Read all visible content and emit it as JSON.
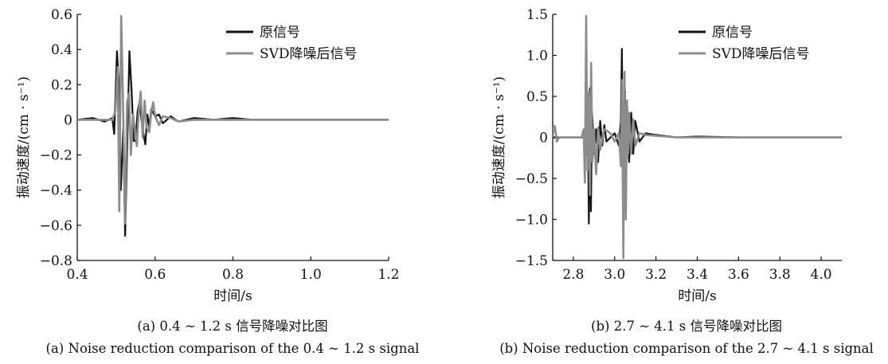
{
  "chart_data": [
    {
      "type": "line",
      "xlabel": "时间/s",
      "ylabel": "振动速度/(cm · s⁻¹)",
      "xlim": [
        0.4,
        1.2
      ],
      "ylim": [
        -0.8,
        0.6
      ],
      "xticks": [
        0.4,
        0.6,
        0.8,
        1.0,
        1.2
      ],
      "xtick_labels": [
        "0.4",
        "0.6",
        "0.8",
        "1.0",
        "1.2"
      ],
      "yticks": [
        0.6,
        0.4,
        0.2,
        0,
        -0.2,
        -0.4,
        -0.6,
        -0.8
      ],
      "ytick_labels": [
        "0.6",
        "0.4",
        "0.2",
        "0",
        "−0.2",
        "−0.4",
        "−0.6",
        "−0.8"
      ],
      "grid": false,
      "legend_position": "top-right",
      "caption_cn": "(a) 0.4 ~ 1.2 s 信号降噪对比图",
      "caption_en": "(a) Noise reduction comparison of the 0.4 ~ 1.2 s signal",
      "series": [
        {
          "name": "原信号",
          "color": "#111111",
          "x": [
            0.4,
            0.44,
            0.47,
            0.49,
            0.495,
            0.502,
            0.507,
            0.512,
            0.518,
            0.523,
            0.529,
            0.534,
            0.54,
            0.545,
            0.55,
            0.555,
            0.56,
            0.565,
            0.57,
            0.575,
            0.58,
            0.585,
            0.59,
            0.6,
            0.61,
            0.62,
            0.64,
            0.66,
            0.7,
            0.75,
            0.8,
            0.85,
            0.9,
            1.0,
            1.1,
            1.2
          ],
          "y": [
            0.0,
            0.01,
            -0.01,
            0.01,
            -0.08,
            0.39,
            0.2,
            -0.4,
            -0.05,
            -0.66,
            -0.1,
            0.39,
            0.15,
            -0.12,
            -0.12,
            0.05,
            0.1,
            0.0,
            -0.08,
            -0.14,
            0.03,
            -0.04,
            0.06,
            0.02,
            0.03,
            -0.02,
            0.02,
            -0.01,
            0.01,
            0.0,
            0.01,
            0.0,
            0.0,
            0.0,
            0.0,
            0.0
          ]
        },
        {
          "name": "SVD降噪后信号",
          "color": "#8c8c8c",
          "x": [
            0.4,
            0.44,
            0.47,
            0.49,
            0.498,
            0.504,
            0.508,
            0.513,
            0.518,
            0.523,
            0.528,
            0.533,
            0.538,
            0.543,
            0.548,
            0.553,
            0.558,
            0.563,
            0.568,
            0.573,
            0.578,
            0.585,
            0.59,
            0.595,
            0.6,
            0.61,
            0.62,
            0.64,
            0.66,
            0.7,
            0.75,
            0.8,
            0.9,
            1.0,
            1.1,
            1.2
          ],
          "y": [
            0.0,
            0.0,
            0.0,
            0.0,
            0.05,
            0.3,
            -0.52,
            0.59,
            0.05,
            -0.59,
            0.1,
            0.15,
            -0.2,
            0.03,
            -0.05,
            -0.15,
            0.05,
            0.16,
            -0.1,
            0.11,
            -0.04,
            -0.07,
            0.04,
            0.1,
            0.02,
            -0.03,
            0.02,
            0.01,
            -0.01,
            0.0,
            0.0,
            0.0,
            0.0,
            0.0,
            0.0,
            0.0
          ]
        }
      ]
    },
    {
      "type": "line",
      "xlabel": "时间/s",
      "ylabel": "振动速度/(cm · s⁻¹)",
      "xlim": [
        2.7,
        4.1
      ],
      "ylim": [
        -1.5,
        1.5
      ],
      "xticks": [
        2.8,
        3.0,
        3.2,
        3.4,
        3.6,
        3.8,
        4.0
      ],
      "xtick_labels": [
        "2.8",
        "3.0",
        "3.2",
        "3.4",
        "3.6",
        "3.8",
        "4.0"
      ],
      "yticks": [
        1.5,
        1.0,
        0.5,
        0,
        -0.5,
        -1.0,
        -1.5
      ],
      "ytick_labels": [
        "1.5",
        "1.0",
        "0.5",
        "0",
        "−0.5",
        "−1.0",
        "−1.5"
      ],
      "grid": false,
      "legend_position": "top-right",
      "caption_cn": "(b) 2.7 ~ 4.1 s 信号降噪对比图",
      "caption_en": "(b) Noise reduction comparison of the 2.7 ~ 4.1 s signal",
      "series": [
        {
          "name": "原信号",
          "color": "#111111",
          "x": [
            2.7,
            2.75,
            2.8,
            2.85,
            2.86,
            2.865,
            2.87,
            2.875,
            2.88,
            2.885,
            2.89,
            2.895,
            2.9,
            2.91,
            2.92,
            2.93,
            2.94,
            2.95,
            2.96,
            2.98,
            3.0,
            3.02,
            3.03,
            3.035,
            3.04,
            3.045,
            3.05,
            3.055,
            3.06,
            3.07,
            3.08,
            3.09,
            3.1,
            3.12,
            3.15,
            3.2,
            3.3,
            3.4,
            3.6,
            3.8,
            4.1
          ],
          "y": [
            0.0,
            0.0,
            0.0,
            0.0,
            0.1,
            -0.2,
            0.3,
            -1.05,
            0.6,
            -0.9,
            0.3,
            0.1,
            -0.2,
            0.1,
            -0.3,
            0.2,
            -0.1,
            0.15,
            -0.05,
            0.0,
            0.05,
            -0.1,
            0.2,
            1.08,
            -0.9,
            0.3,
            0.57,
            -0.5,
            0.4,
            -0.3,
            0.3,
            -0.2,
            0.2,
            -0.05,
            0.05,
            0.03,
            0.0,
            0.01,
            0.0,
            0.0,
            0.0
          ]
        },
        {
          "name": "SVD降噪后信号",
          "color": "#8c8c8c",
          "x": [
            2.7,
            2.705,
            2.71,
            2.715,
            2.72,
            2.73,
            2.75,
            2.8,
            2.84,
            2.85,
            2.856,
            2.862,
            2.868,
            2.874,
            2.88,
            2.886,
            2.892,
            2.9,
            2.91,
            2.92,
            2.93,
            2.95,
            2.98,
            3.0,
            3.02,
            3.03,
            3.036,
            3.042,
            3.048,
            3.054,
            3.06,
            3.065,
            3.07,
            3.08,
            3.09,
            3.1,
            3.12,
            3.15,
            3.2,
            3.3,
            3.4,
            3.6,
            4.1
          ],
          "y": [
            0.0,
            0.12,
            0.14,
            0.05,
            -0.05,
            0.0,
            0.0,
            0.0,
            0.0,
            0.1,
            -0.55,
            1.48,
            -0.4,
            0.55,
            -0.7,
            0.91,
            -0.3,
            0.1,
            -0.45,
            0.12,
            -0.15,
            0.1,
            0.05,
            -0.05,
            0.05,
            -0.35,
            0.7,
            -1.47,
            0.8,
            -1.0,
            0.45,
            -0.2,
            0.3,
            -0.2,
            0.22,
            -0.1,
            0.05,
            0.03,
            0.02,
            0.0,
            0.0,
            0.0,
            0.0
          ]
        }
      ]
    }
  ]
}
